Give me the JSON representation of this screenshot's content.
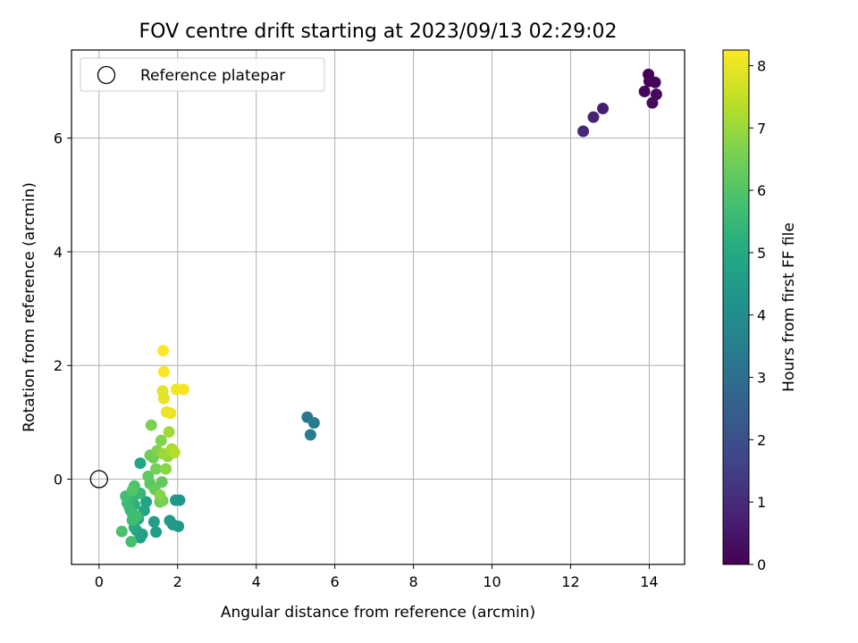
{
  "chart_data": {
    "type": "scatter",
    "title": "FOV centre drift starting at 2023/09/13 02:29:02",
    "xlabel": "Angular distance from reference (arcmin)",
    "ylabel": "Rotation from reference (arcmin)",
    "xlim": [
      -0.7,
      14.9
    ],
    "ylim": [
      -1.5,
      7.55
    ],
    "xticks": [
      0,
      2,
      4,
      6,
      8,
      10,
      12,
      14
    ],
    "yticks": [
      0,
      2,
      4,
      6
    ],
    "grid": true,
    "legend": {
      "position": "top-left",
      "entries": [
        "Reference platepar"
      ]
    },
    "reference_point": {
      "x": 0,
      "y": 0
    },
    "colorbar": {
      "label": "Hours from first FF file",
      "colormap": "viridis",
      "range": [
        0,
        8.25
      ],
      "ticks": [
        0,
        1,
        2,
        3,
        4,
        5,
        6,
        7,
        8
      ]
    },
    "points": [
      {
        "x": 13.98,
        "y": 7.12,
        "h": 0.0
      },
      {
        "x": 14.0,
        "y": 7.0,
        "h": 0.05
      },
      {
        "x": 14.15,
        "y": 6.98,
        "h": 0.1
      },
      {
        "x": 13.88,
        "y": 6.82,
        "h": 0.15
      },
      {
        "x": 14.18,
        "y": 6.77,
        "h": 0.2
      },
      {
        "x": 14.08,
        "y": 6.62,
        "h": 0.25
      },
      {
        "x": 12.82,
        "y": 6.52,
        "h": 0.7
      },
      {
        "x": 12.58,
        "y": 6.37,
        "h": 0.8
      },
      {
        "x": 12.32,
        "y": 6.12,
        "h": 0.9
      },
      {
        "x": 5.3,
        "y": 1.09,
        "h": 3.3
      },
      {
        "x": 5.47,
        "y": 0.99,
        "h": 3.4
      },
      {
        "x": 5.38,
        "y": 0.78,
        "h": 3.5
      },
      {
        "x": 1.95,
        "y": -0.37,
        "h": 4.3
      },
      {
        "x": 2.05,
        "y": -0.37,
        "h": 4.35
      },
      {
        "x": 2.02,
        "y": -0.83,
        "h": 4.4
      },
      {
        "x": 1.8,
        "y": -0.73,
        "h": 4.45
      },
      {
        "x": 1.88,
        "y": -0.8,
        "h": 4.5
      },
      {
        "x": 1.45,
        "y": -0.93,
        "h": 4.55
      },
      {
        "x": 1.4,
        "y": -0.75,
        "h": 4.6
      },
      {
        "x": 1.05,
        "y": -1.03,
        "h": 4.65
      },
      {
        "x": 1.1,
        "y": -0.97,
        "h": 4.7
      },
      {
        "x": 0.95,
        "y": -0.9,
        "h": 4.75
      },
      {
        "x": 1.15,
        "y": -0.55,
        "h": 4.8
      },
      {
        "x": 1.2,
        "y": -0.4,
        "h": 4.85
      },
      {
        "x": 1.05,
        "y": 0.28,
        "h": 4.9
      },
      {
        "x": 0.9,
        "y": -0.85,
        "h": 5.0
      },
      {
        "x": 1.0,
        "y": -0.7,
        "h": 5.05
      },
      {
        "x": 0.85,
        "y": -0.6,
        "h": 5.1
      },
      {
        "x": 0.78,
        "y": -0.5,
        "h": 5.15
      },
      {
        "x": 0.9,
        "y": -0.45,
        "h": 5.2
      },
      {
        "x": 0.75,
        "y": -0.38,
        "h": 5.3
      },
      {
        "x": 0.88,
        "y": -0.3,
        "h": 5.4
      },
      {
        "x": 1.05,
        "y": -0.25,
        "h": 5.5
      },
      {
        "x": 0.72,
        "y": -0.42,
        "h": 5.55
      },
      {
        "x": 0.8,
        "y": -0.55,
        "h": 5.6
      },
      {
        "x": 0.85,
        "y": -0.72,
        "h": 5.65
      },
      {
        "x": 0.95,
        "y": -0.65,
        "h": 5.7
      },
      {
        "x": 0.68,
        "y": -0.3,
        "h": 5.75
      },
      {
        "x": 0.82,
        "y": -1.1,
        "h": 5.8
      },
      {
        "x": 0.58,
        "y": -0.92,
        "h": 5.85
      },
      {
        "x": 0.9,
        "y": -0.12,
        "h": 5.9
      },
      {
        "x": 0.85,
        "y": -0.2,
        "h": 6.0
      },
      {
        "x": 1.3,
        "y": -0.08,
        "h": 6.1
      },
      {
        "x": 1.25,
        "y": 0.05,
        "h": 6.2
      },
      {
        "x": 1.6,
        "y": -0.05,
        "h": 6.25
      },
      {
        "x": 1.42,
        "y": -0.18,
        "h": 6.3
      },
      {
        "x": 1.55,
        "y": -0.4,
        "h": 6.35
      },
      {
        "x": 1.38,
        "y": 0.38,
        "h": 6.4
      },
      {
        "x": 1.3,
        "y": 0.42,
        "h": 6.45
      },
      {
        "x": 1.45,
        "y": 0.18,
        "h": 6.5
      },
      {
        "x": 1.62,
        "y": -0.38,
        "h": 6.55
      },
      {
        "x": 1.33,
        "y": 0.95,
        "h": 6.6
      },
      {
        "x": 1.48,
        "y": 0.5,
        "h": 6.65
      },
      {
        "x": 1.58,
        "y": 0.68,
        "h": 6.7
      },
      {
        "x": 1.55,
        "y": -0.28,
        "h": 6.75
      },
      {
        "x": 1.7,
        "y": 0.18,
        "h": 6.8
      },
      {
        "x": 1.75,
        "y": 0.4,
        "h": 6.9
      },
      {
        "x": 1.62,
        "y": 0.45,
        "h": 7.0
      },
      {
        "x": 1.78,
        "y": 0.83,
        "h": 7.1
      },
      {
        "x": 1.85,
        "y": 0.53,
        "h": 7.2
      },
      {
        "x": 1.92,
        "y": 0.47,
        "h": 7.3
      },
      {
        "x": 1.62,
        "y": 1.55,
        "h": 7.9
      },
      {
        "x": 1.65,
        "y": 1.42,
        "h": 7.95
      },
      {
        "x": 1.72,
        "y": 1.18,
        "h": 8.0
      },
      {
        "x": 1.82,
        "y": 1.16,
        "h": 8.05
      },
      {
        "x": 1.97,
        "y": 1.58,
        "h": 8.1
      },
      {
        "x": 2.15,
        "y": 1.58,
        "h": 8.15
      },
      {
        "x": 1.65,
        "y": 1.89,
        "h": 8.2
      },
      {
        "x": 1.63,
        "y": 2.26,
        "h": 8.25
      }
    ]
  }
}
